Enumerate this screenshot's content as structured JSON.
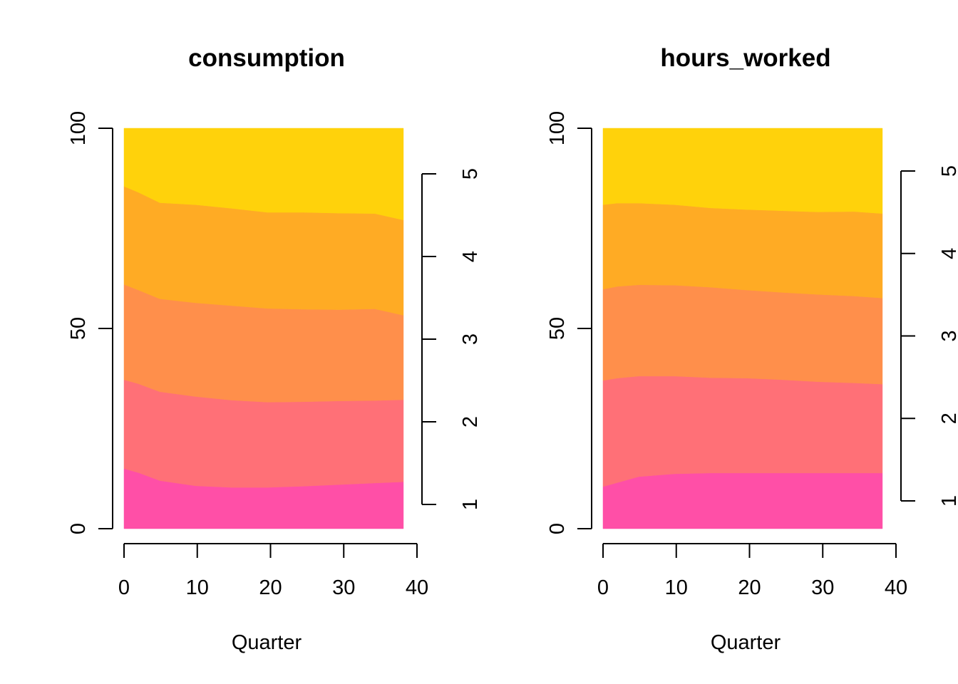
{
  "chart_data": [
    {
      "type": "area",
      "stacked": true,
      "title": "consumption",
      "xlabel": "Quarter",
      "ylabel": "",
      "xlim": [
        0,
        40
      ],
      "ylim": [
        0,
        100
      ],
      "x_ticks": [
        0,
        10,
        20,
        30,
        40
      ],
      "y_ticks": [
        0,
        50,
        100
      ],
      "secondary_y_ticks": [
        1,
        2,
        3,
        4,
        5
      ],
      "x": [
        0,
        2,
        5,
        10,
        15,
        20,
        25,
        30,
        35,
        39
      ],
      "series": [
        {
          "color": "#FF4FA7",
          "values": [
            15,
            14,
            12,
            10.7,
            10.3,
            10.3,
            10.6,
            11,
            11.4,
            11.7
          ]
        },
        {
          "color": "#FF7077",
          "values": [
            22.2,
            22.2,
            22.2,
            22.3,
            21.8,
            21.3,
            21.1,
            20.9,
            20.6,
            20.5
          ]
        },
        {
          "color": "#FF8F4B",
          "values": [
            23.8,
            23.4,
            23.2,
            23.4,
            23.6,
            23.4,
            23.1,
            22.8,
            22.9,
            21.1
          ]
        },
        {
          "color": "#FFAB24",
          "values": [
            24.5,
            24.4,
            24,
            24.5,
            24.3,
            24.0,
            24.2,
            24.1,
            23.8,
            23.8
          ]
        },
        {
          "color": "#FFD20B",
          "values": [
            14.5,
            16,
            18.6,
            19.1,
            20,
            21,
            21,
            21.2,
            21.3,
            22.9
          ]
        }
      ]
    },
    {
      "type": "area",
      "stacked": true,
      "title": "hours_worked",
      "xlabel": "Quarter",
      "ylabel": "",
      "xlim": [
        0,
        40
      ],
      "ylim": [
        0,
        100
      ],
      "x_ticks": [
        0,
        10,
        20,
        30,
        40
      ],
      "y_ticks": [
        0,
        50,
        100
      ],
      "secondary_y_ticks": [
        1,
        2,
        3,
        4,
        5
      ],
      "x": [
        0,
        2,
        5,
        10,
        15,
        20,
        25,
        30,
        35,
        39
      ],
      "series": [
        {
          "color": "#FF4FA7",
          "values": [
            10.5,
            11.5,
            13,
            13.7,
            13.9,
            13.9,
            13.9,
            13.9,
            13.9,
            13.9
          ]
        },
        {
          "color": "#FF7077",
          "values": [
            26.5,
            26.1,
            25.1,
            24.4,
            23.8,
            23.7,
            23.3,
            22.8,
            22.5,
            22.2
          ]
        },
        {
          "color": "#FF8F4B",
          "values": [
            22.8,
            22.9,
            22.8,
            22.7,
            22.6,
            22,
            21.8,
            21.8,
            21.7,
            21.5
          ]
        },
        {
          "color": "#FFAB24",
          "values": [
            21.1,
            20.8,
            20.4,
            20.1,
            19.8,
            20.1,
            20.4,
            20.6,
            21.1,
            21.1
          ]
        },
        {
          "color": "#FFD20B",
          "values": [
            19.1,
            18.7,
            18.7,
            19.1,
            19.9,
            20.3,
            20.6,
            20.9,
            20.8,
            21.3
          ]
        }
      ]
    }
  ]
}
